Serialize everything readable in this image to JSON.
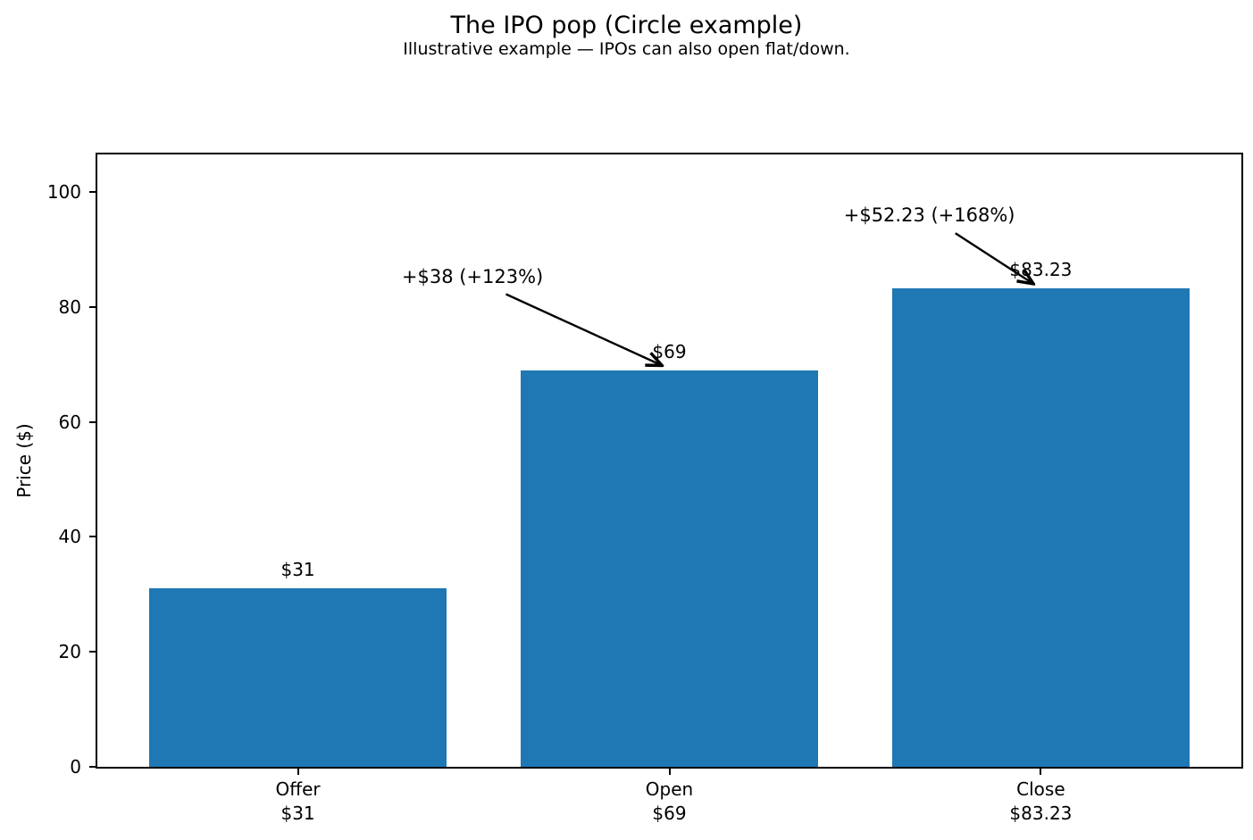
{
  "chart_data": {
    "type": "bar",
    "title": "The IPO pop (Circle example)",
    "subtitle": "Illustrative example — IPOs can also open flat/down.",
    "ylabel": "Price ($)",
    "xlabel": "",
    "categories": [
      "Offer",
      "Open",
      "Close"
    ],
    "category_sublabels": [
      "$31",
      "$69",
      "$83.23"
    ],
    "values": [
      31,
      69,
      83.23
    ],
    "bar_labels": [
      "$31",
      "$69",
      "$83.23"
    ],
    "bar_color": "#1f77b4",
    "axis_color": "#000000",
    "background_color": "#ffffff",
    "yticks": [
      0,
      20,
      40,
      60,
      80,
      100
    ],
    "ylim": [
      0,
      106.5
    ],
    "xlim": [
      -0.54,
      2.54
    ],
    "bar_width": 0.8,
    "grid": false,
    "legend": false,
    "annotations": [
      {
        "text": "+$38 (+123%)",
        "text_x": 0.47,
        "text_y": 85.2,
        "arrow_from_x": 0.56,
        "arrow_from_y": 82.2,
        "arrow_to_x": 0.98,
        "arrow_to_y": 69.8
      },
      {
        "text": "+$52.23 (+168%)",
        "text_x": 1.7,
        "text_y": 96.0,
        "arrow_from_x": 1.77,
        "arrow_from_y": 92.8,
        "arrow_to_x": 1.98,
        "arrow_to_y": 84.0
      }
    ]
  }
}
